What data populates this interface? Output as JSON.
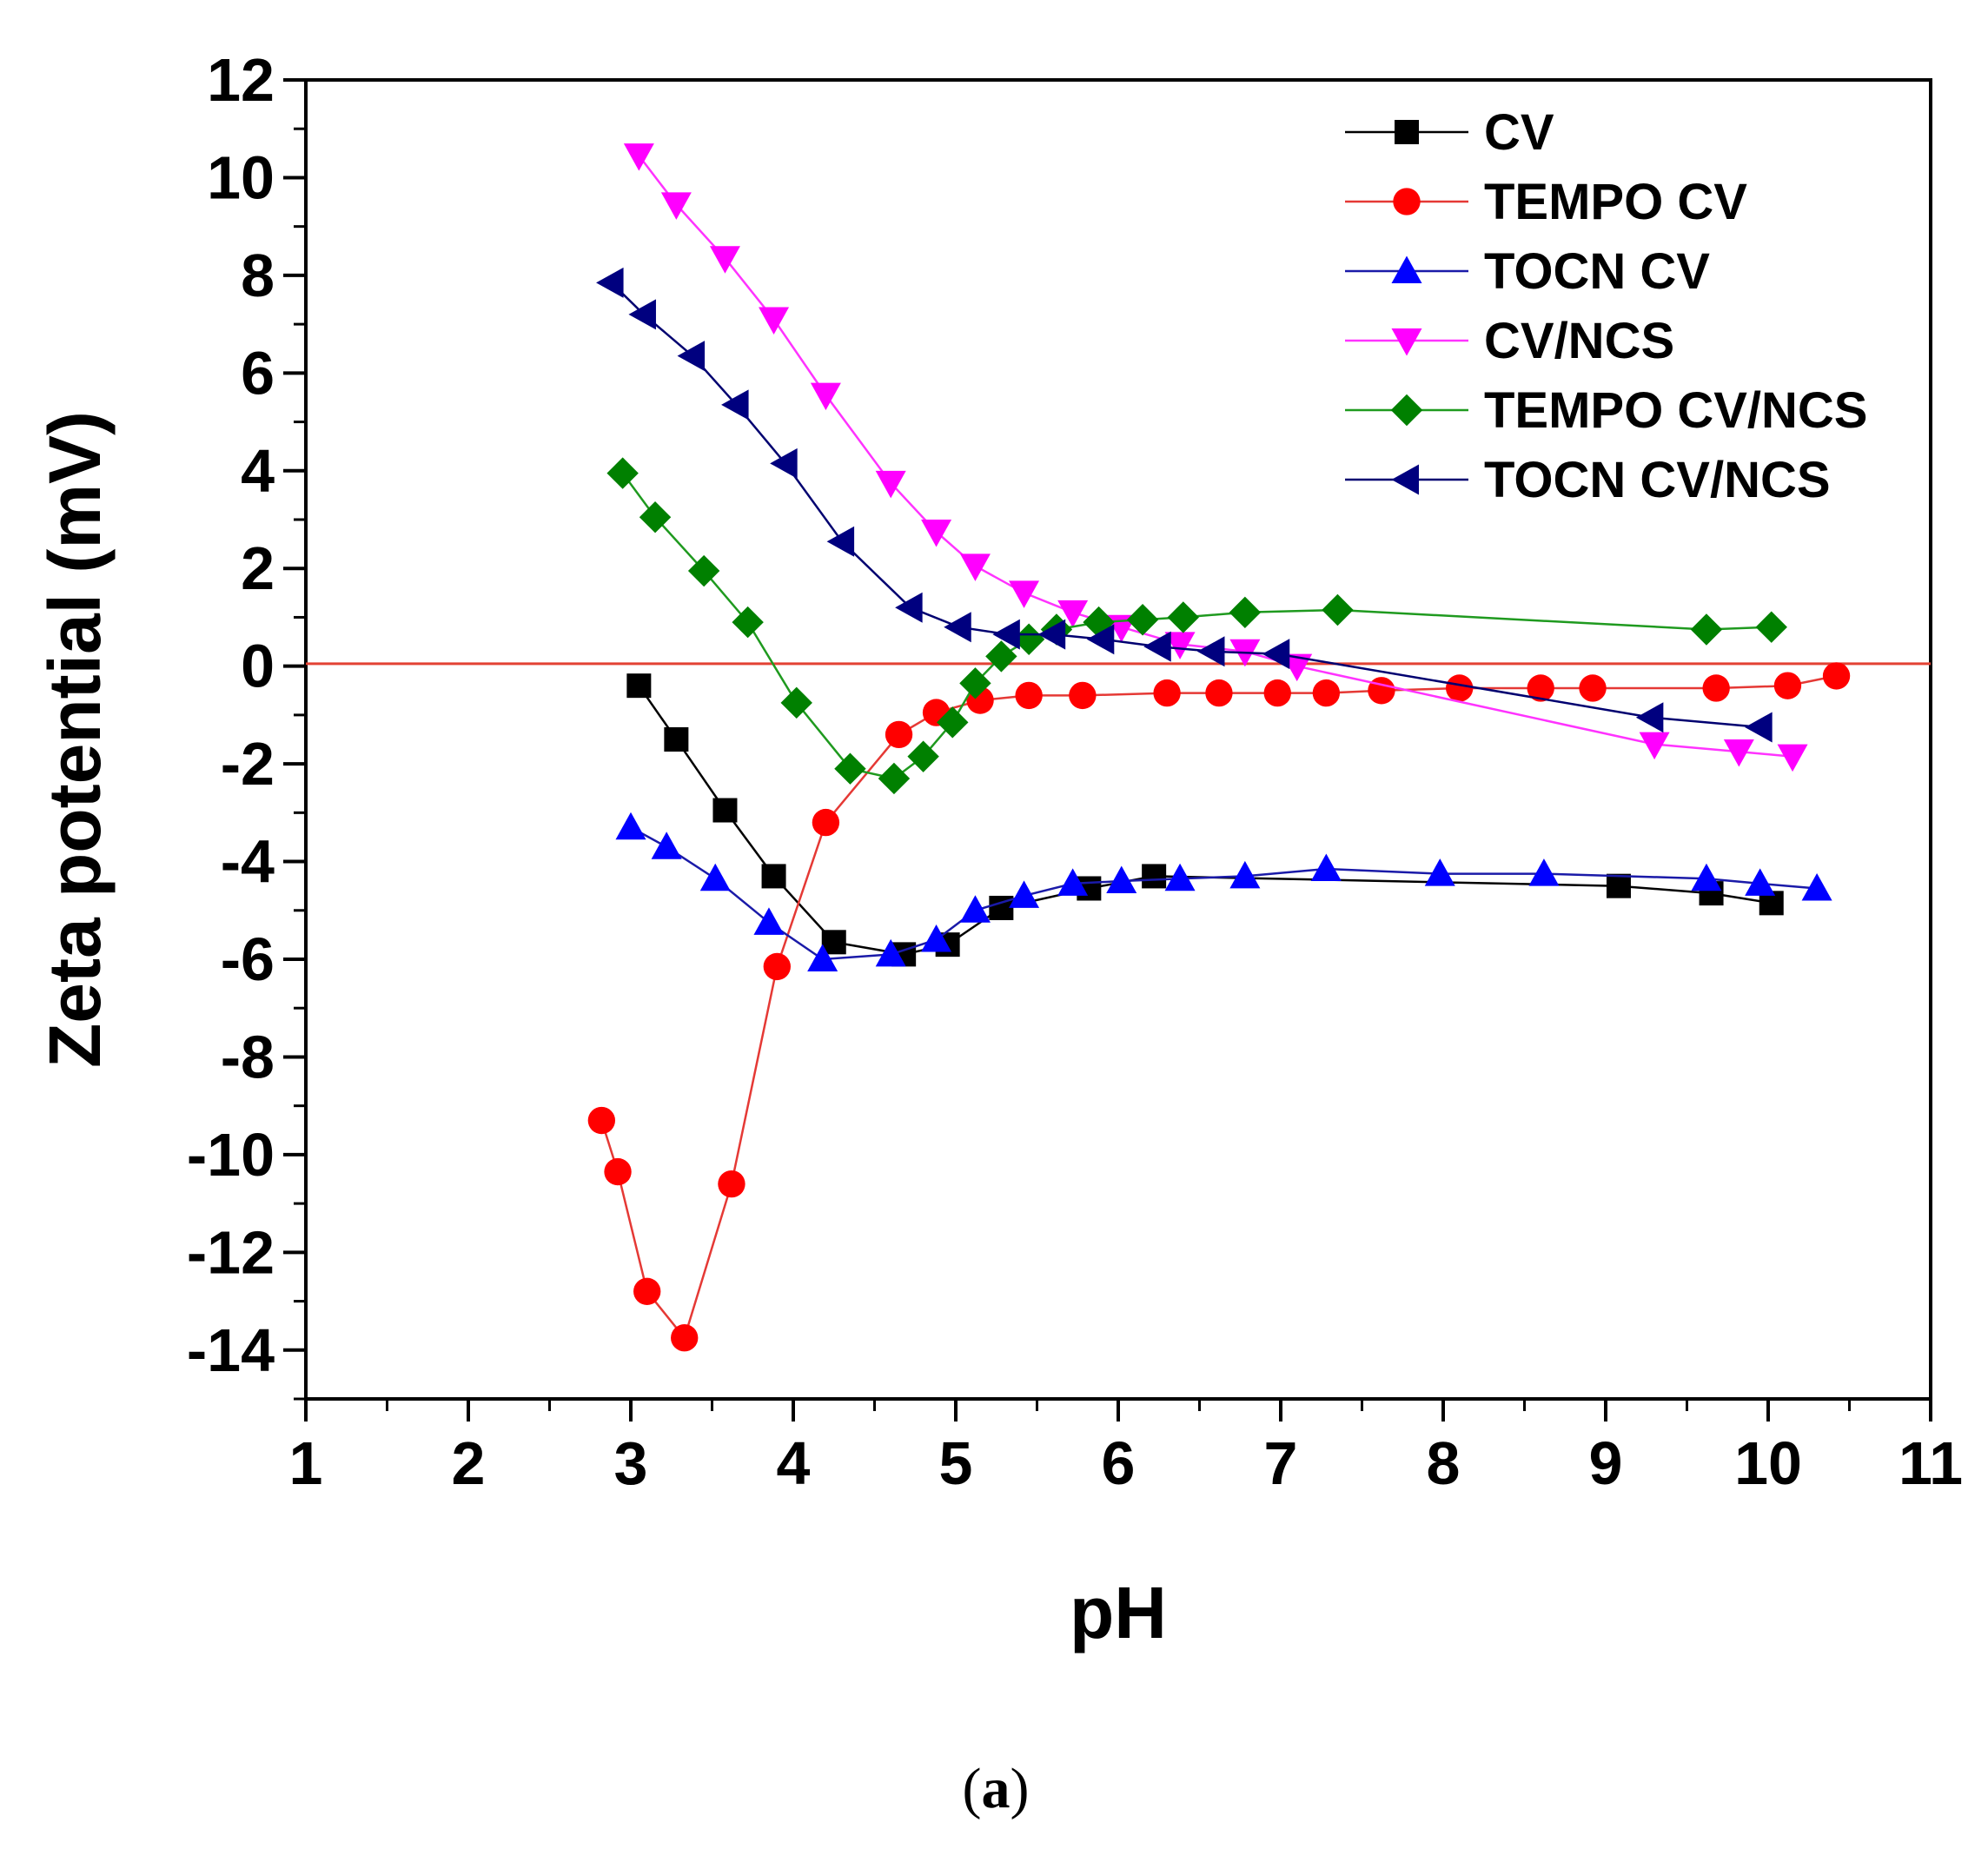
{
  "chart_data": {
    "type": "line",
    "title": "",
    "xlabel": "pH",
    "ylabel": "Zeta potential (mV)",
    "xlim": [
      1,
      11
    ],
    "ylim": [
      -15,
      12
    ],
    "xticks": [
      1,
      2,
      3,
      4,
      5,
      6,
      7,
      8,
      9,
      10,
      11
    ],
    "yticks": [
      -14,
      -12,
      -10,
      -8,
      -6,
      -4,
      -2,
      0,
      2,
      4,
      6,
      8,
      10,
      12
    ],
    "reference_line": {
      "y": 0.05,
      "color": "#e34234"
    },
    "legend_position": "top-right",
    "caption": {
      "open": "(",
      "label": "a",
      "close": ")"
    },
    "series": [
      {
        "name": "CV",
        "color": "#000000",
        "line_color": "#000000",
        "marker": "square",
        "x": [
          3.05,
          3.28,
          3.58,
          3.88,
          4.25,
          4.68,
          4.95,
          5.28,
          5.82,
          6.22,
          9.08,
          9.65,
          10.02
        ],
        "y": [
          -0.4,
          -1.5,
          -2.95,
          -4.3,
          -5.65,
          -5.9,
          -5.7,
          -4.95,
          -4.55,
          -4.3,
          -4.5,
          -4.65,
          -4.85
        ]
      },
      {
        "name": "TEMPO CV",
        "color": "#ff0000",
        "line_color": "#e53935",
        "marker": "circle",
        "x": [
          2.82,
          2.92,
          3.1,
          3.33,
          3.62,
          3.9,
          4.2,
          4.65,
          4.88,
          5.15,
          5.45,
          5.78,
          6.3,
          6.62,
          6.98,
          7.28,
          7.62,
          8.1,
          8.6,
          8.92,
          9.68,
          10.12,
          10.42
        ],
        "y": [
          -9.3,
          -10.35,
          -12.8,
          -13.75,
          -10.6,
          -6.15,
          -3.2,
          -1.4,
          -0.95,
          -0.7,
          -0.6,
          -0.6,
          -0.55,
          -0.55,
          -0.55,
          -0.55,
          -0.5,
          -0.45,
          -0.45,
          -0.45,
          -0.45,
          -0.4,
          -0.2
        ]
      },
      {
        "name": "TOCN CV",
        "color": "#0000ff",
        "line_color": "#1a1aa8",
        "marker": "triangle-up",
        "x": [
          3.0,
          3.22,
          3.52,
          3.85,
          4.18,
          4.6,
          4.88,
          5.12,
          5.42,
          5.72,
          6.02,
          6.38,
          6.78,
          7.28,
          7.98,
          8.62,
          9.62,
          9.95,
          10.3
        ],
        "y": [
          -3.3,
          -3.7,
          -4.35,
          -5.25,
          -6.0,
          -5.9,
          -5.6,
          -5.0,
          -4.7,
          -4.45,
          -4.4,
          -4.35,
          -4.3,
          -4.15,
          -4.25,
          -4.25,
          -4.35,
          -4.45,
          -4.55
        ]
      },
      {
        "name": "CV/NCS",
        "color": "#ff00ff",
        "line_color": "#ff33ff",
        "marker": "triangle-down",
        "x": [
          3.05,
          3.28,
          3.58,
          3.88,
          4.2,
          4.6,
          4.88,
          5.12,
          5.42,
          5.72,
          6.02,
          6.38,
          6.78,
          7.1,
          9.3,
          9.82,
          10.15
        ],
        "y": [
          10.45,
          9.45,
          8.35,
          7.1,
          5.55,
          3.75,
          2.75,
          2.05,
          1.5,
          1.1,
          0.8,
          0.45,
          0.3,
          0.0,
          -1.6,
          -1.75,
          -1.85
        ]
      },
      {
        "name": "TEMPO CV/NCS",
        "color": "#008000",
        "line_color": "#1f9a1f",
        "marker": "diamond",
        "x": [
          2.95,
          3.15,
          3.45,
          3.72,
          4.02,
          4.35,
          4.62,
          4.8,
          4.98,
          5.12,
          5.28,
          5.45,
          5.62,
          5.88,
          6.15,
          6.4,
          6.78,
          7.35,
          9.62,
          10.02
        ],
        "y": [
          3.95,
          3.05,
          1.95,
          0.9,
          -0.75,
          -2.1,
          -2.3,
          -1.85,
          -1.15,
          -0.35,
          0.2,
          0.55,
          0.75,
          0.9,
          0.95,
          1.0,
          1.1,
          1.15,
          0.75,
          0.8
        ]
      },
      {
        "name": "TOCN CV/NCS",
        "color": "#00007f",
        "line_color": "#000070",
        "marker": "triangle-left",
        "x": [
          2.88,
          3.08,
          3.38,
          3.65,
          3.95,
          4.3,
          4.72,
          5.02,
          5.32,
          5.6,
          5.9,
          6.25,
          6.58,
          6.98,
          9.28,
          9.95
        ],
        "y": [
          7.85,
          7.2,
          6.35,
          5.35,
          4.15,
          2.55,
          1.2,
          0.8,
          0.65,
          0.65,
          0.55,
          0.4,
          0.3,
          0.25,
          -1.05,
          -1.25
        ]
      }
    ]
  }
}
